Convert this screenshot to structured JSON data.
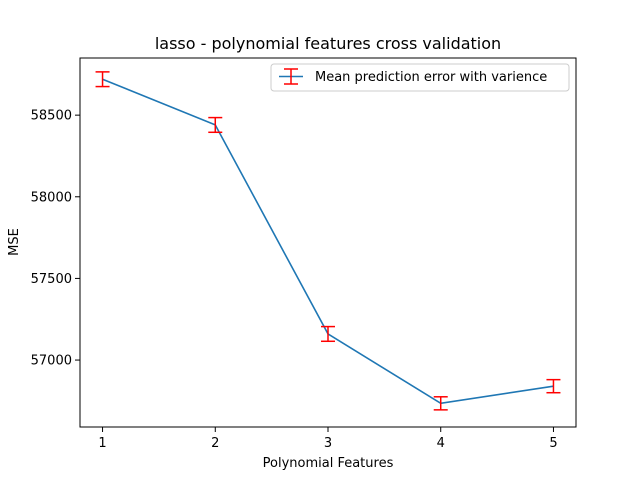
{
  "chart_data": {
    "type": "line",
    "title": "lasso - polynomial features cross validation",
    "xlabel": "Polynomial Features",
    "ylabel": "MSE",
    "x": [
      1,
      2,
      3,
      4,
      5
    ],
    "xticks": [
      "1",
      "2",
      "3",
      "4",
      "5"
    ],
    "yticks": [
      57000,
      57500,
      58000,
      58500
    ],
    "ytick_labels": [
      "57000",
      "57500",
      "58000",
      "58500"
    ],
    "xlim": [
      0.8,
      5.2
    ],
    "ylim": [
      56590,
      58850
    ],
    "series": [
      {
        "name": "Mean prediction error with varience",
        "values": [
          58720,
          58440,
          57160,
          56735,
          56840
        ],
        "errors": [
          45,
          45,
          45,
          40,
          40
        ],
        "line_color": "#1f77b4",
        "error_color": "#ff0000"
      }
    ],
    "legend_position": "top-right",
    "grid": false
  }
}
